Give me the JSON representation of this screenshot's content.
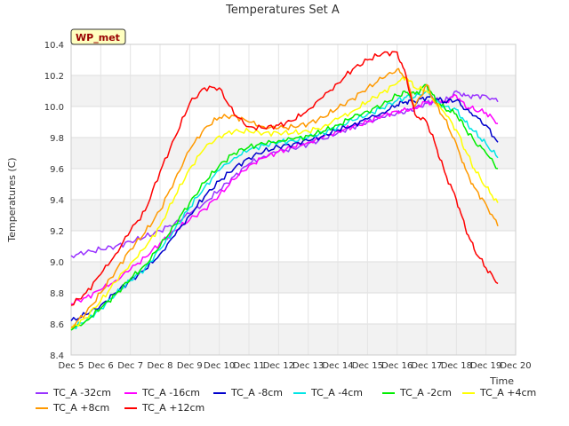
{
  "chart_data": {
    "type": "line",
    "title": "Temperatures Set A",
    "xlabel": "Time",
    "ylabel": "Temperatures (C)",
    "badge": "WP_met",
    "xlim": [
      5,
      20
    ],
    "ylim": [
      8.4,
      10.4
    ],
    "x_ticks": [
      5,
      6,
      7,
      8,
      9,
      10,
      11,
      12,
      13,
      14,
      15,
      16,
      17,
      18,
      19,
      20
    ],
    "x_tick_labels": [
      "Dec 5",
      "Dec 6",
      "Dec 7",
      "Dec 8",
      "Dec 9",
      "Dec 10",
      "Dec 11",
      "Dec 12",
      "Dec 13",
      "Dec 14",
      "Dec 15",
      "Dec 16",
      "Dec 17",
      "Dec 18",
      "Dec 19",
      "Dec 20"
    ],
    "y_ticks": [
      8.4,
      8.6,
      8.8,
      9.0,
      9.2,
      9.4,
      9.6,
      9.8,
      10.0,
      10.2,
      10.4
    ],
    "y_tick_labels": [
      "8.4",
      "8.6",
      "8.8",
      "9.0",
      "9.2",
      "9.4",
      "9.6",
      "9.8",
      "10.0",
      "10.2",
      "10.4"
    ],
    "grid": true,
    "legend_position": "bottom",
    "series": [
      {
        "name": "TC_A -32cm",
        "color": "#9933ff",
        "x": [
          5.0,
          5.5,
          6.0,
          6.5,
          7.0,
          7.5,
          8.0,
          8.5,
          9.0,
          9.5,
          10.0,
          10.5,
          11.0,
          11.5,
          12.0,
          12.5,
          13.0,
          13.5,
          14.0,
          14.5,
          15.0,
          15.5,
          16.0,
          16.3,
          16.6,
          17.0,
          17.3,
          17.6,
          18.0,
          18.3,
          18.6,
          19.0,
          19.4
        ],
        "y": [
          9.04,
          9.06,
          9.08,
          9.1,
          9.13,
          9.16,
          9.2,
          9.25,
          9.31,
          9.38,
          9.46,
          9.55,
          9.63,
          9.68,
          9.71,
          9.73,
          9.76,
          9.79,
          9.83,
          9.87,
          9.9,
          9.93,
          9.96,
          9.97,
          9.99,
          10.02,
          10.04,
          10.03,
          10.1,
          10.07,
          10.07,
          10.07,
          10.03
        ]
      },
      {
        "name": "TC_A -16cm",
        "color": "#ff00ff",
        "x": [
          5.0,
          5.5,
          6.0,
          6.5,
          7.0,
          7.5,
          8.0,
          8.5,
          9.0,
          9.5,
          10.0,
          10.5,
          11.0,
          11.5,
          12.0,
          12.5,
          13.0,
          13.5,
          14.0,
          14.5,
          15.0,
          15.5,
          16.0,
          16.3,
          16.6,
          17.0,
          17.3,
          17.6,
          18.0,
          18.3,
          18.6,
          19.0,
          19.4
        ],
        "y": [
          8.73,
          8.77,
          8.82,
          8.88,
          8.95,
          9.03,
          9.12,
          9.2,
          9.27,
          9.34,
          9.43,
          9.53,
          9.62,
          9.67,
          9.71,
          9.74,
          9.77,
          9.8,
          9.84,
          9.87,
          9.9,
          9.94,
          9.97,
          9.98,
          9.99,
          10.03,
          10.02,
          10.03,
          10.07,
          10.0,
          9.98,
          9.96,
          9.89
        ]
      },
      {
        "name": "TC_A -8cm",
        "color": "#0000cc",
        "x": [
          5.0,
          5.5,
          6.0,
          6.5,
          7.0,
          7.5,
          8.0,
          8.5,
          9.0,
          9.5,
          10.0,
          10.5,
          11.0,
          11.5,
          12.0,
          12.5,
          13.0,
          13.5,
          14.0,
          14.5,
          15.0,
          15.5,
          16.0,
          16.3,
          16.6,
          17.0,
          17.3,
          17.6,
          18.0,
          18.3,
          18.6,
          19.0,
          19.4
        ],
        "y": [
          8.62,
          8.66,
          8.72,
          8.8,
          8.88,
          8.95,
          9.05,
          9.17,
          9.3,
          9.42,
          9.52,
          9.6,
          9.67,
          9.71,
          9.74,
          9.76,
          9.78,
          9.81,
          9.85,
          9.88,
          9.92,
          9.96,
          10.01,
          10.03,
          10.03,
          10.06,
          10.05,
          10.03,
          10.04,
          9.98,
          9.94,
          9.88,
          9.77
        ]
      },
      {
        "name": "TC_A -4cm",
        "color": "#00e5e5",
        "x": [
          5.0,
          5.5,
          6.0,
          6.5,
          7.0,
          7.5,
          8.0,
          8.5,
          9.0,
          9.5,
          10.0,
          10.5,
          11.0,
          11.5,
          12.0,
          12.5,
          13.0,
          13.5,
          14.0,
          14.5,
          15.0,
          15.5,
          16.0,
          16.3,
          16.6,
          17.0,
          17.3,
          17.6,
          18.0,
          18.3,
          18.6,
          19.0,
          19.4
        ],
        "y": [
          8.57,
          8.62,
          8.7,
          8.79,
          8.88,
          8.96,
          9.08,
          9.21,
          9.35,
          9.48,
          9.59,
          9.67,
          9.72,
          9.75,
          9.77,
          9.78,
          9.8,
          9.83,
          9.87,
          9.91,
          9.95,
          9.99,
          10.04,
          10.06,
          10.06,
          10.1,
          10.04,
          10.0,
          9.98,
          9.9,
          9.84,
          9.76,
          9.67
        ]
      },
      {
        "name": "TC_A -2cm",
        "color": "#00ee00",
        "x": [
          5.0,
          5.5,
          6.0,
          6.5,
          7.0,
          7.5,
          8.0,
          8.5,
          9.0,
          9.5,
          10.0,
          10.5,
          11.0,
          11.5,
          12.0,
          12.5,
          13.0,
          13.5,
          14.0,
          14.5,
          15.0,
          15.5,
          16.0,
          16.3,
          16.6,
          17.0,
          17.3,
          17.6,
          18.0,
          18.3,
          18.6,
          19.0,
          19.4
        ],
        "y": [
          8.56,
          8.62,
          8.7,
          8.79,
          8.89,
          8.98,
          9.1,
          9.24,
          9.38,
          9.51,
          9.62,
          9.7,
          9.74,
          9.76,
          9.78,
          9.79,
          9.81,
          9.84,
          9.88,
          9.93,
          9.97,
          10.01,
          10.07,
          10.09,
          10.08,
          10.14,
          10.04,
          9.99,
          9.95,
          9.86,
          9.78,
          9.7,
          9.6
        ]
      },
      {
        "name": "TC_A +4cm",
        "color": "#ffff00",
        "x": [
          5.0,
          5.5,
          6.0,
          6.5,
          7.0,
          7.5,
          8.0,
          8.5,
          9.0,
          9.5,
          10.0,
          10.5,
          11.0,
          11.5,
          12.0,
          12.5,
          13.0,
          13.5,
          14.0,
          14.5,
          15.0,
          15.5,
          16.0,
          16.3,
          16.6,
          17.0,
          17.3,
          17.6,
          18.0,
          18.3,
          18.6,
          19.0,
          19.4
        ],
        "y": [
          8.57,
          8.64,
          8.75,
          8.87,
          8.99,
          9.09,
          9.23,
          9.42,
          9.6,
          9.73,
          9.81,
          9.84,
          9.84,
          9.83,
          9.83,
          9.83,
          9.84,
          9.87,
          9.92,
          9.97,
          10.03,
          10.09,
          10.15,
          10.19,
          10.12,
          10.1,
          10.02,
          9.96,
          9.85,
          9.72,
          9.6,
          9.48,
          9.38
        ]
      },
      {
        "name": "TC_A +8cm",
        "color": "#ff9900",
        "x": [
          5.0,
          5.5,
          6.0,
          6.5,
          7.0,
          7.5,
          8.0,
          8.5,
          9.0,
          9.5,
          10.0,
          10.5,
          11.0,
          11.5,
          12.0,
          12.5,
          13.0,
          13.5,
          14.0,
          14.5,
          15.0,
          15.5,
          16.0,
          16.3,
          16.6,
          17.0,
          17.3,
          17.6,
          18.0,
          18.3,
          18.6,
          19.0,
          19.4
        ],
        "y": [
          8.58,
          8.67,
          8.8,
          8.94,
          9.08,
          9.19,
          9.33,
          9.53,
          9.72,
          9.86,
          9.93,
          9.94,
          9.9,
          9.87,
          9.86,
          9.87,
          9.89,
          9.93,
          9.99,
          10.05,
          10.12,
          10.18,
          10.24,
          10.19,
          10.0,
          10.14,
          10.02,
          9.92,
          9.76,
          9.6,
          9.48,
          9.37,
          9.23
        ]
      },
      {
        "name": "TC_A +12cm",
        "color": "#ff0000",
        "x": [
          5.0,
          5.5,
          6.0,
          6.5,
          7.0,
          7.5,
          8.0,
          8.5,
          9.0,
          9.5,
          10.0,
          10.5,
          11.0,
          11.5,
          12.0,
          12.5,
          13.0,
          13.5,
          14.0,
          14.5,
          15.0,
          15.5,
          16.0,
          16.3,
          16.6,
          17.0,
          17.3,
          17.6,
          18.0,
          18.3,
          18.6,
          19.0,
          19.4
        ],
        "y": [
          8.72,
          8.8,
          8.92,
          9.05,
          9.2,
          9.33,
          9.58,
          9.8,
          10.02,
          10.12,
          10.12,
          9.95,
          9.87,
          9.86,
          9.88,
          9.91,
          9.98,
          10.06,
          10.15,
          10.24,
          10.3,
          10.34,
          10.35,
          10.2,
          9.95,
          9.9,
          9.75,
          9.58,
          9.4,
          9.22,
          9.08,
          8.96,
          8.86
        ]
      }
    ]
  }
}
